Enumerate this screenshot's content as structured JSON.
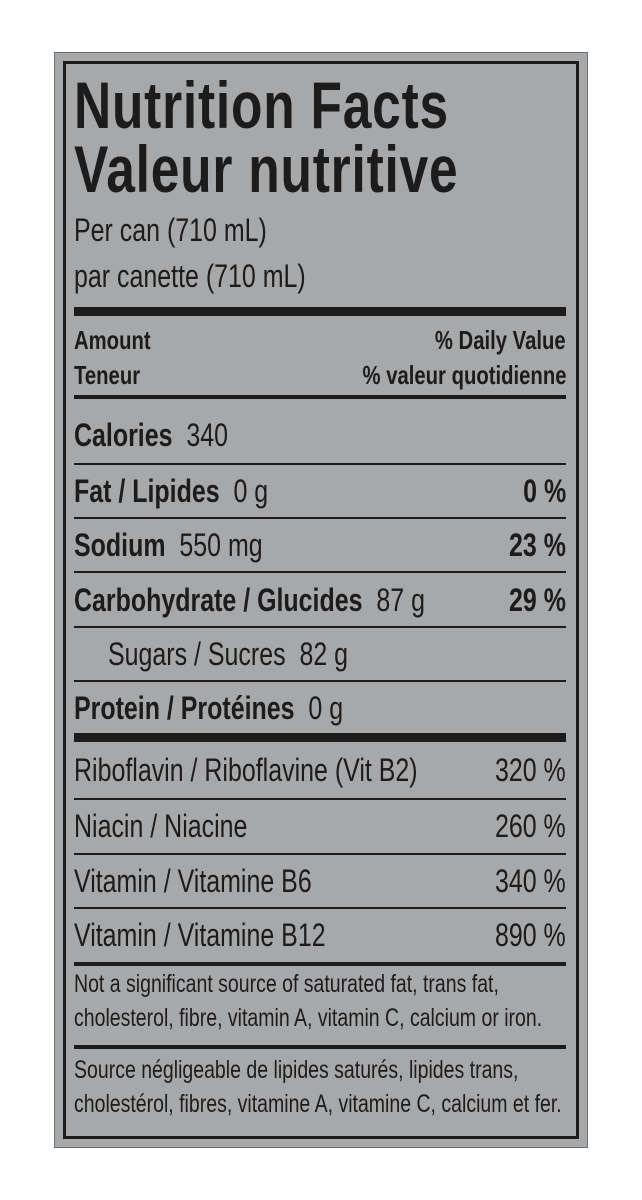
{
  "label": {
    "title_en": "Nutrition Facts",
    "title_fr": "Valeur nutritive",
    "serving_en": "Per can (710 mL)",
    "serving_fr": "par canette (710 mL)",
    "header": {
      "amount_en": "Amount",
      "amount_fr": "Teneur",
      "dv_en": "% Daily Value",
      "dv_fr": "% valeur quotidienne"
    },
    "nutrients": [
      {
        "name": "Calories",
        "amount": "340",
        "dv": ""
      },
      {
        "name": "Fat / Lipides",
        "amount": "0 g",
        "dv": "0 %"
      },
      {
        "name": "Sodium",
        "amount": "550 mg",
        "dv": "23 %"
      },
      {
        "name": "Carbohydrate / Glucides",
        "amount": "87 g",
        "dv": "29 %"
      },
      {
        "name": "Sugars / Sucres",
        "amount": "82 g",
        "dv": ""
      },
      {
        "name": "Protein / Protéines",
        "amount": "0 g",
        "dv": ""
      }
    ],
    "vitamins": [
      {
        "name": "Riboflavin / Riboflavine (Vit B2)",
        "dv": "320 %"
      },
      {
        "name": "Niacin / Niacine",
        "dv": "260 %"
      },
      {
        "name": "Vitamin / Vitamine B6",
        "dv": "340 %"
      },
      {
        "name": "Vitamin / Vitamine B12",
        "dv": "890 %"
      }
    ],
    "footnote_en": [
      "Not a significant source of saturated fat, trans fat,",
      "cholesterol, fibre, vitamin A, vitamin C, calcium or iron."
    ],
    "footnote_fr": [
      "Source négligeable de lipides saturés, lipides trans,",
      "cholestérol, fibres, vitamine A, vitamine C, calcium et fer."
    ],
    "colors": {
      "panel": "#a7a8aa",
      "ink": "#1c1c1c"
    }
  }
}
